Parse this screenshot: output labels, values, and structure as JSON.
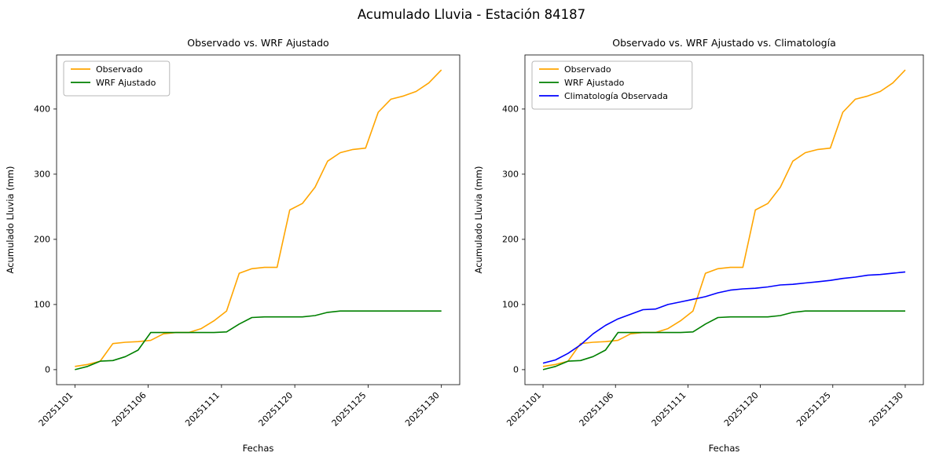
{
  "figure": {
    "title": "Acumulado Lluvia - Estación 84187"
  },
  "chart_data": [
    {
      "type": "line",
      "title": "Observado vs. WRF Ajustado",
      "xlabel": "Fechas",
      "ylabel": "Acumulado Lluvia (mm)",
      "grid": false,
      "legend_position": "upper left",
      "ylim": [
        -23,
        483
      ],
      "y_ticks": [
        0,
        100,
        200,
        300,
        400
      ],
      "x_tick_labels": [
        "20251101",
        "20251106",
        "20251111",
        "20251120",
        "20251125",
        "20251130"
      ],
      "x": [
        "20251101",
        "20251102",
        "20251103",
        "20251104",
        "20251105",
        "20251106",
        "20251107",
        "20251108",
        "20251109",
        "20251110",
        "20251111",
        "20251112",
        "20251113",
        "20251114",
        "20251115",
        "20251116",
        "20251117",
        "20251118",
        "20251119",
        "20251120",
        "20251121",
        "20251122",
        "20251123",
        "20251124",
        "20251125",
        "20251126",
        "20251127",
        "20251128",
        "20251129",
        "20251130"
      ],
      "series": [
        {
          "name": "Observado",
          "color": "#ffa500",
          "values": [
            5,
            8,
            13,
            40,
            42,
            43,
            45,
            55,
            57,
            57,
            63,
            75,
            90,
            148,
            155,
            157,
            157,
            245,
            255,
            280,
            320,
            333,
            338,
            340,
            395,
            415,
            420,
            427,
            440,
            460
          ]
        },
        {
          "name": "WRF Ajustado",
          "color": "#008000",
          "values": [
            0,
            5,
            13,
            14,
            20,
            30,
            57,
            57,
            57,
            57,
            57,
            57,
            58,
            70,
            80,
            81,
            81,
            81,
            81,
            83,
            88,
            90,
            90,
            90,
            90,
            90,
            90,
            90,
            90,
            90
          ]
        }
      ]
    },
    {
      "type": "line",
      "title": "Observado vs. WRF Ajustado vs. Climatología",
      "xlabel": "Fechas",
      "ylabel": "Acumulado Lluvia (mm)",
      "grid": false,
      "legend_position": "upper left",
      "ylim": [
        -23,
        483
      ],
      "y_ticks": [
        0,
        100,
        200,
        300,
        400
      ],
      "x_tick_labels": [
        "20251101",
        "20251106",
        "20251111",
        "20251120",
        "20251125",
        "20251130"
      ],
      "x": [
        "20251101",
        "20251102",
        "20251103",
        "20251104",
        "20251105",
        "20251106",
        "20251107",
        "20251108",
        "20251109",
        "20251110",
        "20251111",
        "20251112",
        "20251113",
        "20251114",
        "20251115",
        "20251116",
        "20251117",
        "20251118",
        "20251119",
        "20251120",
        "20251121",
        "20251122",
        "20251123",
        "20251124",
        "20251125",
        "20251126",
        "20251127",
        "20251128",
        "20251129",
        "20251130"
      ],
      "series": [
        {
          "name": "Observado",
          "color": "#ffa500",
          "values": [
            5,
            8,
            13,
            40,
            42,
            43,
            45,
            55,
            57,
            57,
            63,
            75,
            90,
            148,
            155,
            157,
            157,
            245,
            255,
            280,
            320,
            333,
            338,
            340,
            395,
            415,
            420,
            427,
            440,
            460
          ]
        },
        {
          "name": "WRF Ajustado",
          "color": "#008000",
          "values": [
            0,
            5,
            13,
            14,
            20,
            30,
            57,
            57,
            57,
            57,
            57,
            57,
            58,
            70,
            80,
            81,
            81,
            81,
            81,
            83,
            88,
            90,
            90,
            90,
            90,
            90,
            90,
            90,
            90,
            90
          ]
        },
        {
          "name": "Climatología Observada",
          "color": "#0000ff",
          "values": [
            10,
            15,
            25,
            38,
            55,
            68,
            78,
            85,
            92,
            93,
            100,
            104,
            108,
            112,
            118,
            122,
            124,
            125,
            127,
            130,
            131,
            133,
            135,
            137,
            140,
            142,
            145,
            146,
            148,
            150
          ]
        }
      ]
    }
  ]
}
